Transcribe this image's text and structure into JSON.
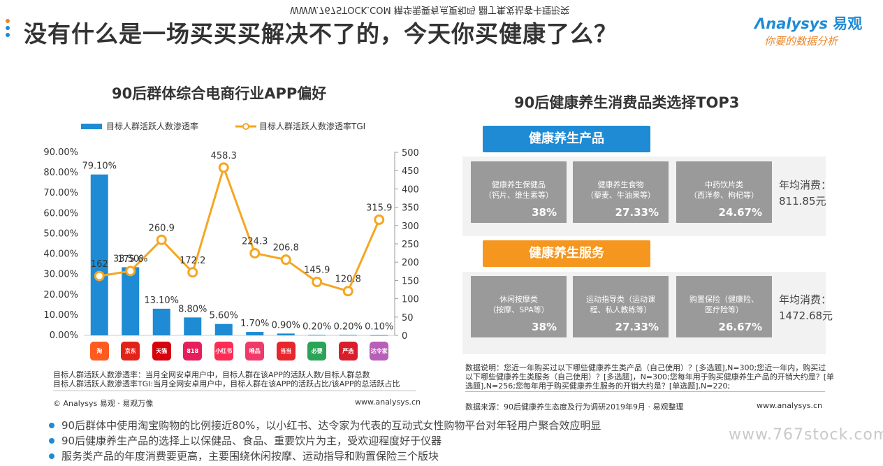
{
  "header": {
    "title": "没有什么是一场买买买解决不了的，今天你买健康了么？",
    "mirror_text": "WWW.767STOCK.COM 精华需要有点更和吗 翻丁集发拈客卡理形突",
    "logo_main": "nalysys",
    "logo_cn": "易观",
    "logo_slogan": "你要的数据分析",
    "dot_colors": [
      "#e9862a",
      "#1e8bd4",
      "#1e8bd4"
    ]
  },
  "left_panel": {
    "legend": [
      "目标人群活跃人数渗透率",
      "目标人群活跃人数渗透率TGI"
    ],
    "notes": [
      "目标人群活跃人数渗透率：当月全网安卓用户中，目标人群在该APP的活跃人数/目标人群总数",
      "目标人群活跃人数渗透率TGI:当月全网安卓用户中，目标人群在该APP的活跃占比/该APP的总活跃占比"
    ],
    "copyright": "© Analysys 易观 · 易观万像",
    "site": "www.analysys.cn",
    "app_icons": [
      {
        "icon": "taobao-icon",
        "label": "淘",
        "color": "#ff5a1f"
      },
      {
        "icon": "jd-icon",
        "label": "京东",
        "color": "#e2231a"
      },
      {
        "icon": "tmall-icon",
        "label": "天猫",
        "color": "#d7000f"
      },
      {
        "icon": "mogujie-icon",
        "label": "818",
        "color": "#e61e5c"
      },
      {
        "icon": "xiaohongshu-icon",
        "label": "小红书",
        "color": "#fe2c55"
      },
      {
        "icon": "vipshop-icon",
        "label": "唯品",
        "color": "#f03a69"
      },
      {
        "icon": "dangdang-icon",
        "label": "当当",
        "color": "#e8262d"
      },
      {
        "icon": "bidou-icon",
        "label": "必要",
        "color": "#2aa457"
      },
      {
        "icon": "yanxuan-icon",
        "label": "严选",
        "color": "#d81e2c"
      },
      {
        "icon": "darenjia-icon",
        "label": "达令家",
        "color": "#b85fb8"
      }
    ]
  },
  "chart_data": {
    "type": "bar",
    "title": "90后群体综合电商行业APP偏好",
    "xlabel": "",
    "ylabel": "",
    "categories": [
      "淘宝",
      "京东",
      "天猫",
      "蘑菇街",
      "小红书",
      "唯品会",
      "当当",
      "必要",
      "网易严选",
      "达令家"
    ],
    "series": [
      {
        "name": "目标人群活跃人数渗透率",
        "type": "bar",
        "axis": "left",
        "color": "#1e8bd4",
        "values": [
          79.1,
          33.5,
          13.1,
          8.8,
          5.6,
          1.7,
          0.9,
          0.2,
          0.2,
          0.1
        ],
        "labels": [
          "79.10%",
          "33.50%",
          "13.10%",
          "8.80%",
          "5.60%",
          "1.70%",
          "0.90%",
          "0.20%",
          "0.20%",
          "0.10%"
        ]
      },
      {
        "name": "目标人群活跃人数渗透率TGI",
        "type": "line",
        "axis": "right",
        "color": "#f5a623",
        "values": [
          162,
          175.6,
          260.9,
          172.2,
          458.3,
          224.3,
          206.8,
          145.9,
          120.8,
          315.9
        ],
        "labels": [
          "162",
          "175.6",
          "260.9",
          "172.2",
          "458.3",
          "224.3",
          "206.8",
          "145.9",
          "120.8",
          "315.9"
        ]
      }
    ],
    "y_left": {
      "min": 0,
      "max": 90,
      "ticks": [
        "0.00%",
        "10.00%",
        "20.00%",
        "30.00%",
        "40.00%",
        "50.00%",
        "60.00%",
        "70.00%",
        "80.00%",
        "90.00%"
      ]
    },
    "y_right": {
      "min": 0,
      "max": 500,
      "ticks": [
        "0",
        "50",
        "100",
        "150",
        "200",
        "250",
        "300",
        "350",
        "400",
        "450",
        "500"
      ]
    },
    "legend_position": "top",
    "grid": false
  },
  "right_panel": {
    "title": "90后健康养生消费品类选择TOP3",
    "products": {
      "label": "健康养生产品",
      "color": "#1e8bd4",
      "items": [
        {
          "name": "健康养生保健品",
          "sub": "（钙片、维生素等）",
          "pct": "38%"
        },
        {
          "name": "健康养生食物",
          "sub": "（藜麦、牛油果等）",
          "pct": "27.33%"
        },
        {
          "name": "中药饮片类",
          "sub": "（西洋参、枸杞等）",
          "pct": "24.67%"
        }
      ],
      "avg_label": "年均消费：",
      "avg_value": "811.85元"
    },
    "services": {
      "label": "健康养生服务",
      "color": "#f5961e",
      "items": [
        {
          "name": "休闲按摩类",
          "sub": "（按摩、SPA等）",
          "pct": "38%"
        },
        {
          "name": "运动指导类（运动课",
          "sub": "程、私人教练等）",
          "pct": "27.33%"
        },
        {
          "name": "购置保险（健康险、",
          "sub": "医疗险等）",
          "pct": "26.67%"
        }
      ],
      "avg_label": "年均消费：",
      "avg_value": "1472.68元"
    },
    "notes": [
      "数据说明：您近一年购买过以下哪些健康养生类产品（自己使用）？[多选题],N=300;您近一年内，购买过",
      "以下哪些健康养生类服务（自己使用）？[多选题]，N=300;您每年用于购买健康养生产品的开销大约是？[单",
      "选题],N=256;您每年用于购买健康养生服务的开销大约是？[单选题],N=220;"
    ],
    "source": "数据来源：90后健康养生态度及行为调研2019年9月 · 易观整理",
    "site": "www.analysys.cn"
  },
  "bullets": [
    "90后群体中使用淘宝购物的比例接近80%，以小红书、达令家为代表的互动式女性购物平台对年轻用户聚合效应明显",
    "90后健康养生产品的选择上以保健品、食品、重要饮片为主，受欢迎程度好于仪器",
    "服务类产品的年度消费要更高，主要围绕休闲按摩、运动指导和购置保险三个版块"
  ],
  "watermark": "www.767stock.com"
}
